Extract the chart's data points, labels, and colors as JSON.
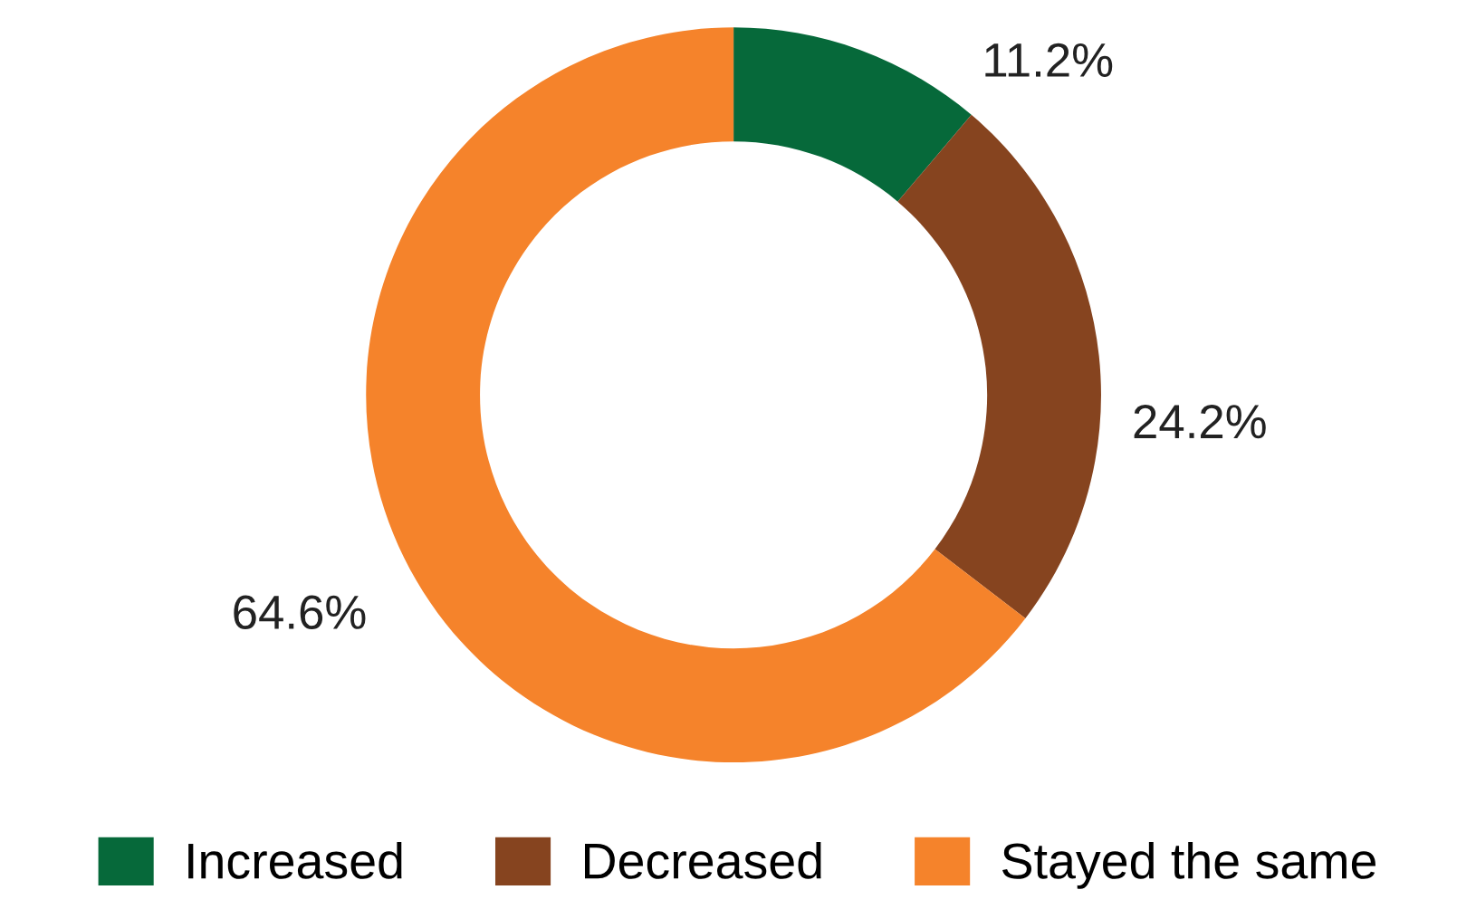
{
  "chart_data": {
    "type": "donut",
    "categories": [
      "Increased",
      "Decreased",
      "Stayed the same"
    ],
    "values": [
      11.2,
      24.2,
      64.6
    ],
    "colors": [
      "#06693a",
      "#86441f",
      "#f5832b"
    ],
    "value_labels": [
      "11.2%",
      "24.2%",
      "64.6%"
    ],
    "legend": "bottom"
  }
}
